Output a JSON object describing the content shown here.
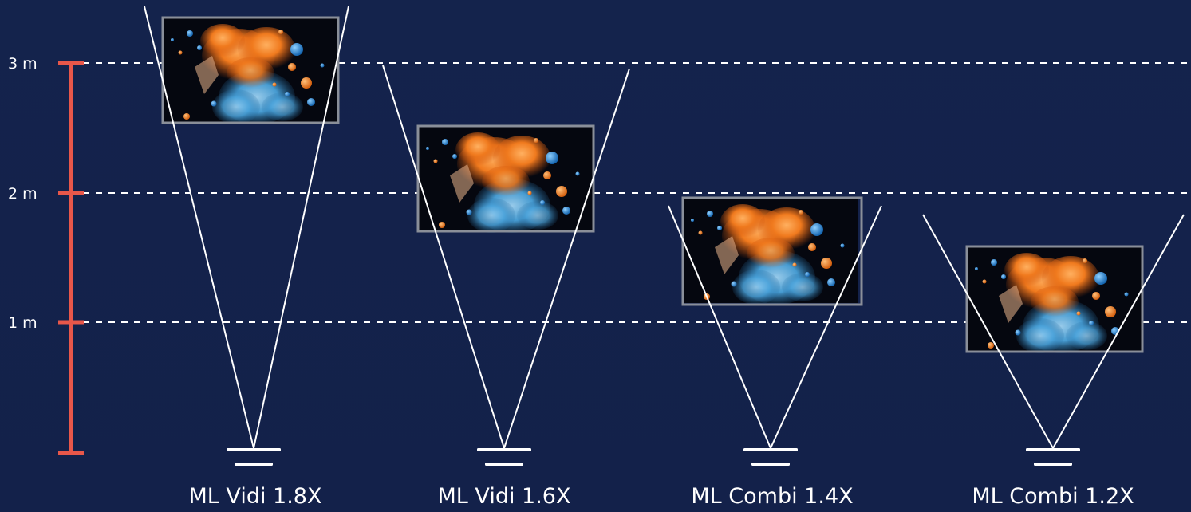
{
  "scale": {
    "color": "#e8574a",
    "marks": [
      {
        "label": "3 m"
      },
      {
        "label": "2 m"
      },
      {
        "label": "1 m"
      }
    ]
  },
  "guide_color": "#ffffff",
  "beam_color": "#ffffff",
  "projectors": [
    {
      "name": "ML Vidi 1.8X"
    },
    {
      "name": "ML Vidi 1.6X"
    },
    {
      "name": "ML Combi 1.4X"
    },
    {
      "name": "ML Combi 1.2X"
    }
  ],
  "screen_image": {
    "background": "#05070f",
    "accent_orange": "#f07a1e",
    "accent_blue": "#3fa2e6"
  }
}
